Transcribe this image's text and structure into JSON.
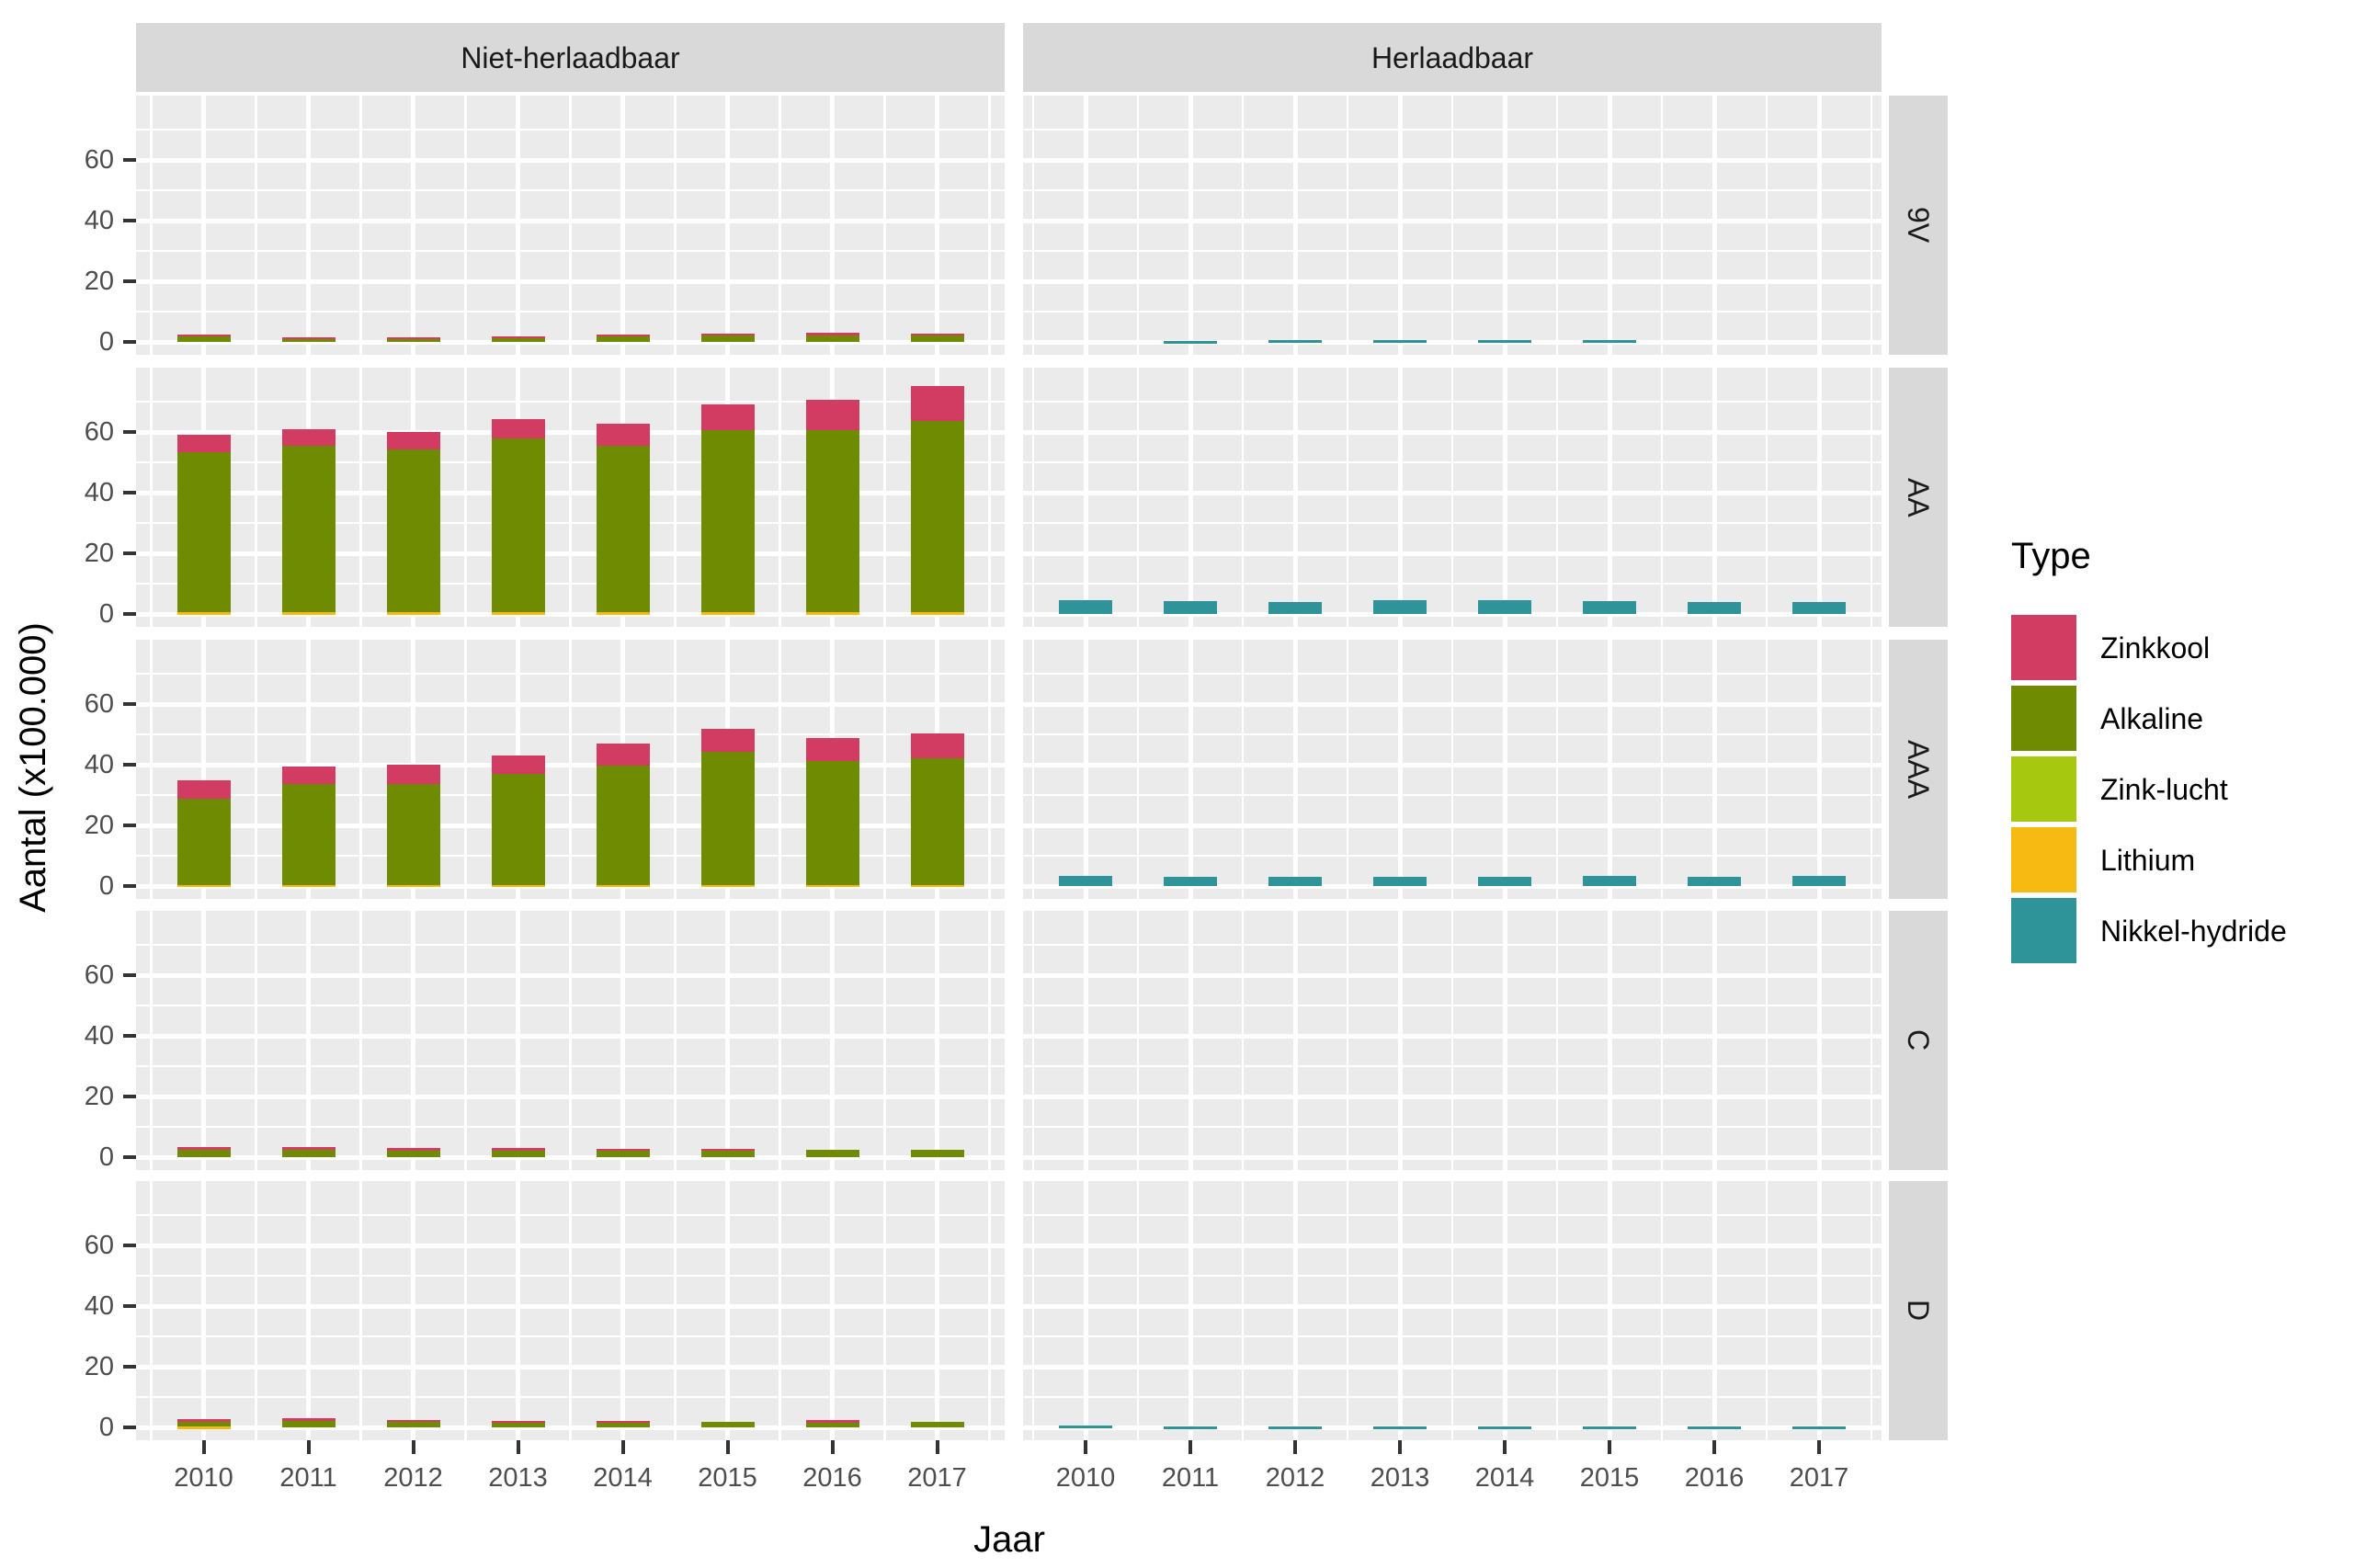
{
  "chart_data": {
    "type": "bar",
    "stacked": true,
    "xlabel": "Jaar",
    "ylabel": "Aantal (x100.000)",
    "x": [
      "2010",
      "2011",
      "2012",
      "2013",
      "2014",
      "2015",
      "2016",
      "2017"
    ],
    "y_ticks": [
      0,
      20,
      40,
      60
    ],
    "y_minor_ticks": [
      10,
      30,
      50,
      70
    ],
    "ylim": [
      -4.2,
      81.2
    ],
    "grid": "major-and-minor-white-on-grey",
    "facet_cols": [
      "Niet-herlaadbaar",
      "Herlaadbaar"
    ],
    "facet_rows": [
      "9V",
      "AA",
      "AAA",
      "C",
      "D"
    ],
    "stack_order": [
      "Nikkel-hydride",
      "Lithium",
      "Zink-lucht",
      "Alkaline",
      "Zinkkool"
    ],
    "legend": {
      "title": "Type",
      "position": "right",
      "entries": [
        {
          "label": "Zinkkool",
          "color": "#D23C63"
        },
        {
          "label": "Alkaline",
          "color": "#6F8B01"
        },
        {
          "label": "Zink-lucht",
          "color": "#A6C80F"
        },
        {
          "label": "Lithium",
          "color": "#F7BA12"
        },
        {
          "label": "Nikkel-hydride",
          "color": "#2E949A"
        }
      ]
    },
    "panels": [
      {
        "row": "9V",
        "col": "Niet-herlaadbaar",
        "series": {
          "Lithium": [
            0,
            0,
            0,
            0,
            0,
            0,
            0,
            0
          ],
          "Alkaline": [
            2.0,
            1.4,
            1.5,
            1.7,
            2.0,
            2.3,
            2.5,
            2.4
          ],
          "Zinkkool": [
            0.5,
            0.2,
            0.2,
            0.3,
            0.5,
            0.5,
            0.5,
            0.4
          ]
        }
      },
      {
        "row": "9V",
        "col": "Herlaadbaar",
        "series": {
          "Nikkel-hydride": [
            0,
            0.2,
            0.5,
            0.5,
            0.5,
            0.5,
            0,
            0
          ]
        }
      },
      {
        "row": "AA",
        "col": "Niet-herlaadbaar",
        "series": {
          "Lithium": [
            0.5,
            0.5,
            0.5,
            0.5,
            0.5,
            0.6,
            0.6,
            0.6
          ],
          "Alkaline": [
            52.9,
            55.1,
            53.7,
            57.5,
            54.9,
            59.9,
            60.1,
            63.0
          ],
          "Zinkkool": [
            5.8,
            5.4,
            5.8,
            6.3,
            7.4,
            8.7,
            9.8,
            11.4
          ]
        }
      },
      {
        "row": "AA",
        "col": "Herlaadbaar",
        "series": {
          "Nikkel-hydride": [
            4.5,
            4.3,
            4.0,
            4.5,
            4.5,
            4.2,
            4.0,
            4.0
          ]
        }
      },
      {
        "row": "AAA",
        "col": "Niet-herlaadbaar",
        "series": {
          "Lithium": [
            0.4,
            0.4,
            0.4,
            0.4,
            0.4,
            0.4,
            0.4,
            0.4
          ],
          "Alkaline": [
            28.5,
            33.2,
            33.4,
            36.5,
            39.2,
            44.0,
            40.9,
            41.7
          ],
          "Zinkkool": [
            6.0,
            5.7,
            6.3,
            6.1,
            7.3,
            7.4,
            7.6,
            8.1
          ]
        }
      },
      {
        "row": "AAA",
        "col": "Herlaadbaar",
        "series": {
          "Nikkel-hydride": [
            3.3,
            3.2,
            3.0,
            3.0,
            3.2,
            3.4,
            3.2,
            3.3
          ]
        }
      },
      {
        "row": "C",
        "col": "Niet-herlaadbaar",
        "series": {
          "Alkaline": [
            3.0,
            3.0,
            2.8,
            2.8,
            2.5,
            2.5,
            2.5,
            2.4
          ],
          "Zinkkool": [
            0.3,
            0.3,
            0.2,
            0.2,
            0.3,
            0.3,
            0,
            0
          ]
        }
      },
      {
        "row": "C",
        "col": "Herlaadbaar",
        "series": {
          "Nikkel-hydride": [
            0,
            0,
            0,
            0,
            0,
            0,
            0,
            0
          ]
        }
      },
      {
        "row": "D",
        "col": "Niet-herlaadbaar",
        "series": {
          "Lithium": [
            0.3,
            0,
            0,
            0,
            0,
            0,
            0,
            0
          ],
          "Alkaline": [
            2.0,
            2.5,
            2.2,
            2.0,
            2.0,
            2.0,
            2.0,
            1.8
          ],
          "Zinkkool": [
            0.4,
            0.5,
            0.3,
            0.3,
            0.3,
            0,
            0.4,
            0
          ]
        }
      },
      {
        "row": "D",
        "col": "Herlaadbaar",
        "series": {
          "Nikkel-hydride": [
            0.6,
            0.3,
            0.3,
            0.3,
            0.3,
            0.3,
            0.3,
            0.3
          ]
        }
      }
    ],
    "theme_colors": {
      "panel_background": "#EBEBEB",
      "strip_background": "#D9D9D9",
      "gridline": "#FFFFFF",
      "tick_mark": "#333333",
      "axis_text": "#4D4D4D",
      "strip_text": "#1A1A1A"
    }
  }
}
